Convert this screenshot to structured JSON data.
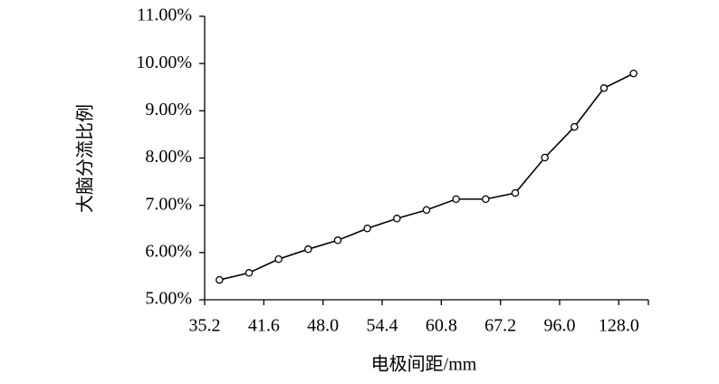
{
  "chart_data": {
    "type": "line",
    "x_label": "电极间距/mm",
    "y_label": "大脑分流比例",
    "xtick_labels": [
      "35.2",
      "41.6",
      "48.0",
      "54.4",
      "60.8",
      "67.2",
      "96.0",
      "128.0"
    ],
    "series": [
      {
        "color": "#000000",
        "values": [
          5.42,
          5.57,
          5.86,
          6.07,
          6.26,
          6.51,
          6.72,
          6.9,
          7.13,
          7.13,
          7.26,
          8.01,
          8.66,
          9.48,
          9.79
        ]
      }
    ],
    "ylim": [
      5,
      11
    ],
    "yticks": [
      {
        "value": 5,
        "label": "5.00%"
      },
      {
        "value": 6,
        "label": "6.00%"
      },
      {
        "value": 7,
        "label": "7.00%"
      },
      {
        "value": 8,
        "label": "8.00%"
      },
      {
        "value": 9,
        "label": "9.00%"
      },
      {
        "value": 10,
        "label": "10.00%"
      },
      {
        "value": 11,
        "label": "11.00%"
      }
    ],
    "markers": true
  }
}
